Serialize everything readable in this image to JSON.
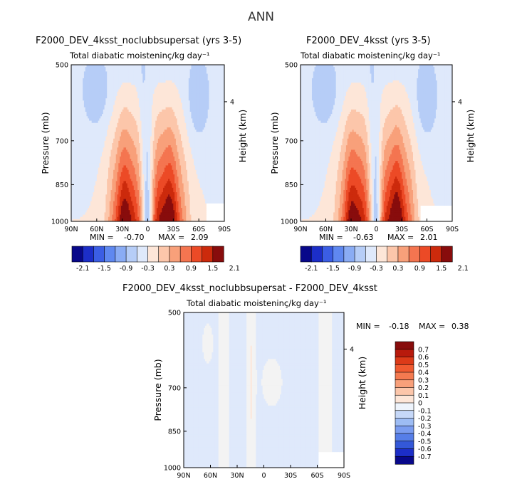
{
  "figure_title": "ANN",
  "colors": {
    "levels_top": [
      "#08088a",
      "#1c2ec8",
      "#3b5ee4",
      "#5f88f0",
      "#8aacf4",
      "#b6cdf7",
      "#dfe9fb",
      "#fde6d8",
      "#fcc6aa",
      "#f8a07a",
      "#f47550",
      "#ec4a26",
      "#cc2a0c",
      "#880c0c"
    ],
    "levels_diff": [
      "#08088a",
      "#1c2ec8",
      "#3b5ee4",
      "#5f88f0",
      "#8aacf4",
      "#b6cdf7",
      "#dfe9fb",
      "#f3f3f3",
      "#fde6d8",
      "#fcc6aa",
      "#f8a07a",
      "#f47550",
      "#ec4a26",
      "#cc2a0c",
      "#880c0c"
    ]
  },
  "chart_data": [
    {
      "type": "heatmap",
      "title": "F2000_DEV_4ksst_noclubbsupersat (yrs 3-5)",
      "subtitle": "Total diabatic moisteninç/kg day⁻¹",
      "xlabel": "",
      "ylabel": "Pressure (mb)",
      "y2label": "Height (km)",
      "x_ticks": [
        "90N",
        "60N",
        "30N",
        "0",
        "30S",
        "60S",
        "90S"
      ],
      "y_ticks": [
        "500",
        "700",
        "850",
        "1000"
      ],
      "y2_ticks": [
        "4"
      ],
      "ylim": [
        1000,
        500
      ],
      "stats": {
        "min_label": "MIN =",
        "min": "-0.70",
        "max_label": "MAX =",
        "max": "2.09"
      },
      "colorbar_ticks": [
        "-2.1",
        "-1.5",
        "-0.9",
        "-0.3",
        "0.3",
        "0.9",
        "1.5",
        "2.1"
      ]
    },
    {
      "type": "heatmap",
      "title": "F2000_DEV_4ksst (yrs 3-5)",
      "subtitle": "Total diabatic moisteninç/kg day⁻¹",
      "xlabel": "",
      "ylabel": "Pressure (mb)",
      "y2label": "Height (km)",
      "x_ticks": [
        "90N",
        "60N",
        "30N",
        "0",
        "30S",
        "60S",
        "90S"
      ],
      "y_ticks": [
        "500",
        "700",
        "850",
        "1000"
      ],
      "y2_ticks": [
        "4"
      ],
      "ylim": [
        1000,
        500
      ],
      "stats": {
        "min_label": "MIN =",
        "min": "-0.63",
        "max_label": "MAX =",
        "max": "2.01"
      },
      "colorbar_ticks": [
        "-2.1",
        "-1.5",
        "-0.9",
        "-0.3",
        "0.3",
        "0.9",
        "1.5",
        "2.1"
      ]
    },
    {
      "type": "heatmap",
      "title": "F2000_DEV_4ksst_noclubbsupersat - F2000_DEV_4ksst",
      "subtitle": "Total diabatic moisteninç/kg day⁻¹",
      "xlabel": "",
      "ylabel": "Pressure (mb)",
      "y2label": "Height (km)",
      "x_ticks": [
        "90N",
        "60N",
        "30N",
        "0",
        "30S",
        "60S",
        "90S"
      ],
      "y_ticks": [
        "500",
        "700",
        "850",
        "1000"
      ],
      "y2_ticks": [
        "4"
      ],
      "ylim": [
        1000,
        500
      ],
      "stats": {
        "min_label": "MIN =",
        "min": "-0.18",
        "max_label": "MAX =",
        "max": "0.38"
      },
      "colorbar_ticks": [
        "0.7",
        "0.6",
        "0.5",
        "0.4",
        "0.3",
        "0.2",
        "0.1",
        "0",
        "-0.1",
        "-0.2",
        "-0.3",
        "-0.4",
        "-0.5",
        "-0.6",
        "-0.7"
      ]
    }
  ]
}
